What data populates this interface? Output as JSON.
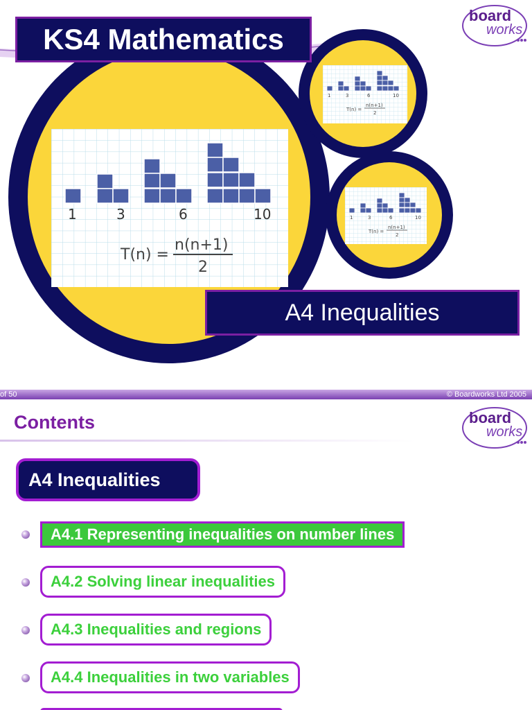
{
  "slide1": {
    "title": "KS4 Mathematics",
    "subtitle": "A4 Inequalities",
    "illustration": {
      "numbers": [
        "1",
        "3",
        "6",
        "10"
      ],
      "formula": "T(n) = n(n+1)/2"
    },
    "logo": {
      "line1": "board",
      "line2": "works"
    },
    "footer": {
      "left": "of 50",
      "right": "© Boardworks Ltd 2005"
    }
  },
  "slide2": {
    "heading": "Contents",
    "section": "A4 Inequalities",
    "items": [
      {
        "label": "A4.1 Representing inequalities on number lines"
      },
      {
        "label": "A4.2 Solving linear inequalities"
      },
      {
        "label": "A4.3 Inequalities and regions"
      },
      {
        "label": "A4.4 Inequalities in two variables"
      }
    ],
    "logo": {
      "line1": "board",
      "line2": "works"
    }
  },
  "colors": {
    "navy": "#0e0e5e",
    "yellow": "#fbd63a",
    "purple": "#7b1fa2",
    "green": "#3cd03c"
  }
}
